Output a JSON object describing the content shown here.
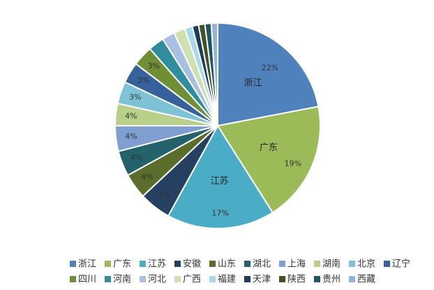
{
  "chart_data": {
    "type": "pie",
    "title": "",
    "start": "top",
    "direction": "clockwise",
    "legend_position": "bottom",
    "slices": [
      {
        "name": "浙江",
        "value": 22.0,
        "color": "#4f81bd",
        "pct_label": "22%",
        "slice_label": "浙江"
      },
      {
        "name": "广东",
        "value": 19.0,
        "color": "#9bbb59",
        "pct_label": "19%",
        "slice_label": "广东"
      },
      {
        "name": "江苏",
        "value": 17.0,
        "color": "#4bacc6",
        "pct_label": "17%",
        "slice_label": "江苏"
      },
      {
        "name": "安徽",
        "value": 5.0,
        "color": "#254061",
        "pct_label": "5%",
        "slice_label": ""
      },
      {
        "name": "山东",
        "value": 4.0,
        "color": "#5a6e2c",
        "pct_label": "4%",
        "slice_label": ""
      },
      {
        "name": "湖北",
        "value": 4.0,
        "color": "#23626b",
        "pct_label": "4%",
        "slice_label": ""
      },
      {
        "name": "上海",
        "value": 4.0,
        "color": "#7f9fd1",
        "pct_label": "4%",
        "slice_label": ""
      },
      {
        "name": "湖南",
        "value": 3.5,
        "color": "#b8d08a",
        "pct_label": "4%",
        "slice_label": ""
      },
      {
        "name": "北京",
        "value": 3.5,
        "color": "#7ec3d5",
        "pct_label": "3%",
        "slice_label": ""
      },
      {
        "name": "辽宁",
        "value": 3.3,
        "color": "#36619c",
        "pct_label": "3%",
        "slice_label": ""
      },
      {
        "name": "四川",
        "value": 3.2,
        "color": "#6f8f35",
        "pct_label": "3%",
        "slice_label": ""
      },
      {
        "name": "河南",
        "value": 2.5,
        "color": "#2f8d9c",
        "pct_label": "",
        "slice_label": ""
      },
      {
        "name": "河北",
        "value": 2.0,
        "color": "#a9bfe2",
        "pct_label": "",
        "slice_label": ""
      },
      {
        "name": "广西",
        "value": 1.8,
        "color": "#cfe0b2",
        "pct_label": "",
        "slice_label": ""
      },
      {
        "name": "福建",
        "value": 1.2,
        "color": "#a8dbe6",
        "pct_label": "",
        "slice_label": ""
      },
      {
        "name": "天津",
        "value": 1.0,
        "color": "#1f3b5e",
        "pct_label": "",
        "slice_label": ""
      },
      {
        "name": "陕西",
        "value": 1.0,
        "color": "#3f5420",
        "pct_label": "",
        "slice_label": ""
      },
      {
        "name": "贵州",
        "value": 1.0,
        "color": "#1d5560",
        "pct_label": "",
        "slice_label": ""
      },
      {
        "name": "西藏",
        "value": 1.0,
        "color": "#95b3d7",
        "pct_label": "",
        "slice_label": ""
      }
    ]
  }
}
